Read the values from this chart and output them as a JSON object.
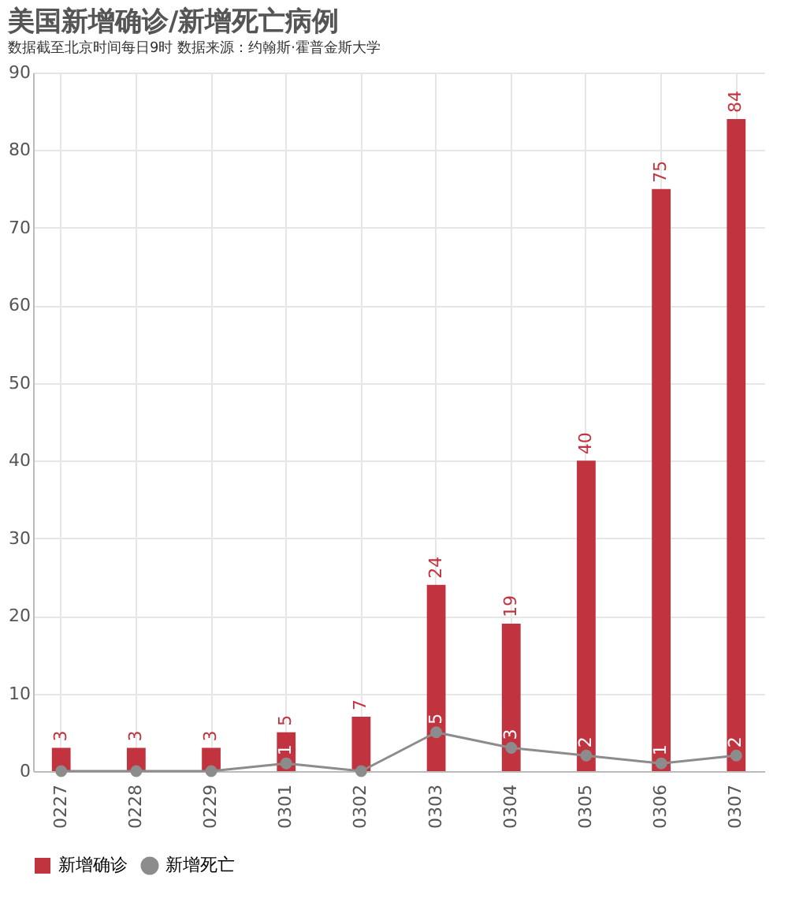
{
  "chart_data": {
    "type": "bar",
    "title": "美国新增确诊/新增死亡病例",
    "subtitle": "数据截至北京时间每日9时    数据来源：约翰斯·霍普金斯大学",
    "categories": [
      "0227",
      "0228",
      "0229",
      "0301",
      "0302",
      "0303",
      "0304",
      "0305",
      "0306",
      "0307"
    ],
    "series": [
      {
        "name": "新增确诊",
        "color": "#c0333f",
        "values": [
          3,
          3,
          3,
          5,
          7,
          24,
          19,
          40,
          75,
          84
        ],
        "value_labels": [
          "3",
          "3",
          "3",
          "5",
          "7",
          "24",
          "19",
          "40",
          "75",
          "84"
        ]
      },
      {
        "name": "新增死亡",
        "type": "line",
        "color": "#8c8c8c",
        "marker": "circle",
        "values": [
          0,
          0,
          0,
          1,
          0,
          5,
          3,
          2,
          1,
          2
        ],
        "value_labels": [
          null,
          null,
          null,
          "1",
          null,
          "5",
          "3",
          "2",
          "1",
          "2"
        ]
      }
    ],
    "ylim": [
      0,
      90
    ],
    "yticks": [
      0,
      10,
      20,
      30,
      40,
      50,
      60,
      70,
      80,
      90
    ],
    "grid": true,
    "legend": "bottom"
  }
}
